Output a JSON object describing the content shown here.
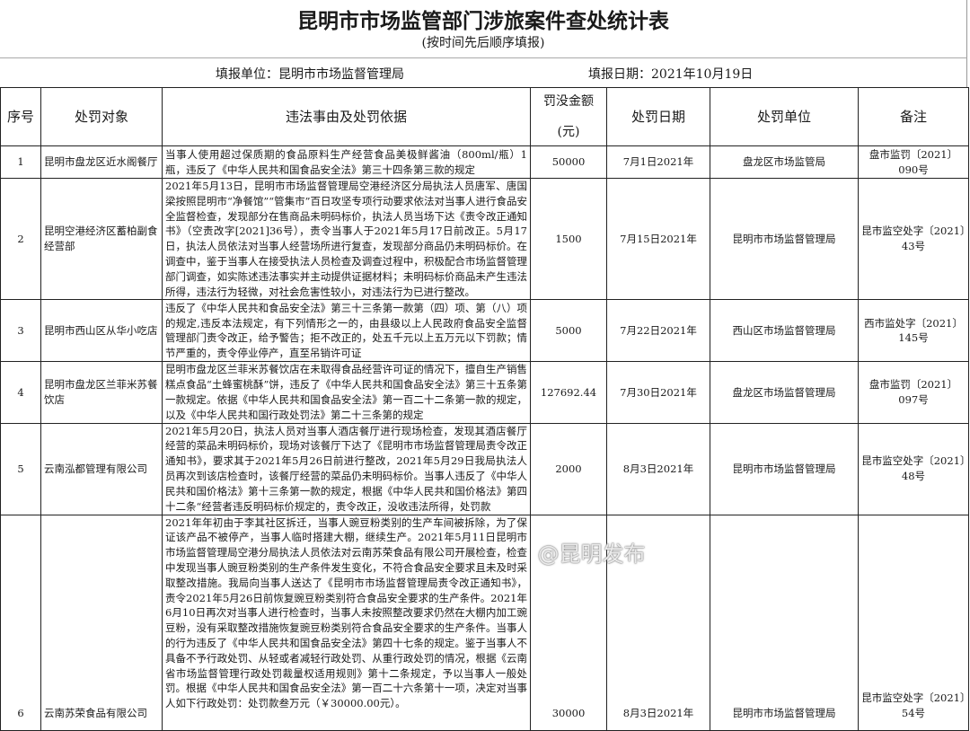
{
  "title": "昆明市市场监管部门涉旅案件查处统计表",
  "subtitle": "(按时间先后顺序填报)",
  "fill_unit": "填报单位：昆明市市场监督管理局",
  "fill_date": "填报日期：2021年10月19日",
  "headers": [
    "序号",
    "处罚对象",
    "违法事由及处罚依据",
    "罚没金额\n\n(元)",
    "处罚日期",
    "处罚单位",
    "备注"
  ],
  "rows": [
    {
      "no": "1",
      "target": "昆明市盘龙区近水阁餐厅",
      "reason": "当事人使用超过保质期的食品原料生产经营食品美极鲜酱油（800ml/瓶）1瓶，违反了《中华人民共和国食品安全法》第三十四条第三款的规定",
      "amount": "50000",
      "date": "7月1日2021年",
      "unit": "盘龙区市场监管局",
      "note": "盘市监罚〔2021〕090号"
    },
    {
      "no": "2",
      "target": "昆明空港经济区蓄柏副食经营部",
      "reason": "2021年5月13日，昆明市市场监督管理局空港经济区分局执法人员唐军、唐国梁按照昆明市“净餐馆”“管集市”百日攻坚专项行动要求依法对当事人进行食品安全监督检查，发现部分在售商品未明码标价，执法人员当场下达《责令改正通知书》（空责改字[2021]36号），责令当事人于2021年5月17日前改正。5月17日，执法人员依法对当事人经营场所进行复查，发现部分商品仍未明码标价。在调查中，鉴于当事人在接受执法人员检查及调查过程中，积极配合市场监督管理部门调查，如实陈述违法事实并主动提供证据材料；未明码标价商品未产生违法所得，违法行为轻微，对社会危害性较小，对违法行为已进行整改。",
      "amount": "1500",
      "date": "7月15日2021年",
      "unit": "昆明市市场监督管理局",
      "note": "昆市监空处字〔2021〕43号"
    },
    {
      "no": "3",
      "target": "昆明市西山区从华小吃店",
      "reason": "违反了《中华人民共和食品安全法》第三十三条第一款第（四）项、第（八）项的规定,违反本法规定，有下列情形之一的，由县级以上人民政府食品安全监督管理部门责令改正，给予警告；拒不改正的，处五千元以上五万元以下罚款；情节严重的，责令停业停产，直至吊销许可证",
      "amount": "5000",
      "date": "7月22日2021年",
      "unit": "西山区市场监督管理局",
      "note": "西市监处字〔2021〕145号"
    },
    {
      "no": "4",
      "target": "昆明市盘龙区兰菲米苏餐饮店",
      "reason": "昆明市盘龙区兰菲米苏餐饮店在未取得食品经营许可证的情况下，擅自生产销售糕点食品“土蜂蜜桃酥”饼，违反了《中华人民共和国食品安全法》第三十五条第一款规定。依据《中华人民共和国食品安全法》第一百二十二条第一款的规定，以及《中华人民共和国行政处罚法》第二十三条第的规定",
      "amount": "127692.44",
      "date": "7月30日2021年",
      "unit": "盘龙区市场监督管理局",
      "note": "盘市监罚〔2021〕097号"
    },
    {
      "no": "5",
      "target": "云南泓都管理有限公司",
      "reason": "2021年5月20日，执法人员对当事人酒店餐厅进行现场检查，发现其酒店餐厅经营的菜品未明码标价，现场对该餐厅下达了《昆明市市场监督管理局责令改正通知书》，要求其于2021年5月26日前进行整改，2021年5月29日我局执法人员再次到该店检查时，该餐厅经营的菜品仍未明码标价。当事人违反了《中华人民共和国价格法》第十三条第一款的规定，根据《中华人民共和国价格法》第四十二条“经营者违反明码标价规定的，责令改正，没收违法所得，处罚款",
      "amount": "2000",
      "date": "8月3日2021年",
      "unit": "昆明市市场监督管理局",
      "note": "昆市监空处字〔2021〕48号"
    },
    {
      "no": "6",
      "target": "云南苏荣食品有限公司",
      "reason": "2021年年初由于李其社区拆迁，当事人豌豆粉类别的生产车间被拆除，为了保证该产品不被停产，当事人临时搭建大棚，继续生产。2021年5月11日昆明市市场监督管理局空港分局执法人员依法对云南苏荣食品有限公司开展检查，检查中发现当事人豌豆粉类别的生产条件发生变化，不符合食品安全要求且未及时采取整改措施。我局向当事人送达了《昆明市市场监督管理局责令改正通知书》，责令2021年5月26日前恢复豌豆粉类别符合食品安全要求的生产条件。2021年6月10日再次对当事人进行检查时，当事人未按照整改要求仍然在大棚内加工豌豆粉，没有采取整改措施恢复豌豆粉类别符合食品安全要求的生产条件。当事人的行为违反了《中华人民共和国食品安全法》第四十七条的规定。鉴于当事人不具备不予行政处罚、从轻或者减轻行政处罚、从重行政处罚的情况，根据《云南省市场监督管理行政处罚裁量权适用规则》第十二条规定，予以当事人一般处罚。根据《中华人民共和国食品安全法》第一百二十六条第十一项，决定对当事人如下行政处罚：处罚款叁万元（￥30000.00元）。",
      "amount": "30000",
      "date": "8月3日2021年",
      "unit": "昆明市市场监督管理局",
      "note": "昆市监空处字〔2021〕54号"
    }
  ],
  "watermark": "@昆明发布"
}
